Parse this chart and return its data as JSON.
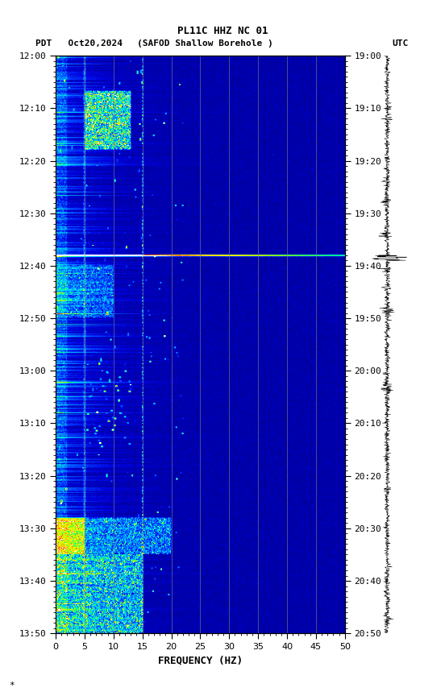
{
  "title_line1": "PL11C HHZ NC 01",
  "title_line2_left": "PDT   Oct20,2024",
  "title_line2_center": "(SAFOD Shallow Borehole )",
  "title_line2_right": "UTC",
  "xlabel": "FREQUENCY (HZ)",
  "freq_min": 0,
  "freq_max": 50,
  "pdt_ticks": [
    "12:00",
    "12:10",
    "12:20",
    "12:30",
    "12:40",
    "12:50",
    "13:00",
    "13:10",
    "13:20",
    "13:30",
    "13:40",
    "13:50"
  ],
  "utc_ticks": [
    "19:00",
    "19:10",
    "19:20",
    "19:30",
    "19:40",
    "19:50",
    "20:00",
    "20:10",
    "20:20",
    "20:30",
    "20:40",
    "20:50"
  ],
  "freq_ticks": [
    0,
    5,
    10,
    15,
    20,
    25,
    30,
    35,
    40,
    45,
    50
  ],
  "vertical_lines_freq": [
    5,
    10,
    15,
    20,
    25,
    30,
    35,
    40,
    45
  ],
  "vertical_line_color": "#7f7f7f",
  "orange_line_freq": [
    5,
    15
  ],
  "background_color": "#ffffff",
  "spectrogram_bg": "#000066",
  "seed": 42,
  "n_time": 660,
  "n_freq": 500,
  "colormap_nodes": [
    [
      0.0,
      "#000099"
    ],
    [
      0.15,
      "#0000dd"
    ],
    [
      0.3,
      "#0044ff"
    ],
    [
      0.45,
      "#0099ff"
    ],
    [
      0.58,
      "#00ddff"
    ],
    [
      0.68,
      "#00ff88"
    ],
    [
      0.78,
      "#aaff00"
    ],
    [
      0.86,
      "#ffff00"
    ],
    [
      0.92,
      "#ffaa00"
    ],
    [
      0.96,
      "#ff4400"
    ],
    [
      1.0,
      "#ffffff"
    ]
  ]
}
